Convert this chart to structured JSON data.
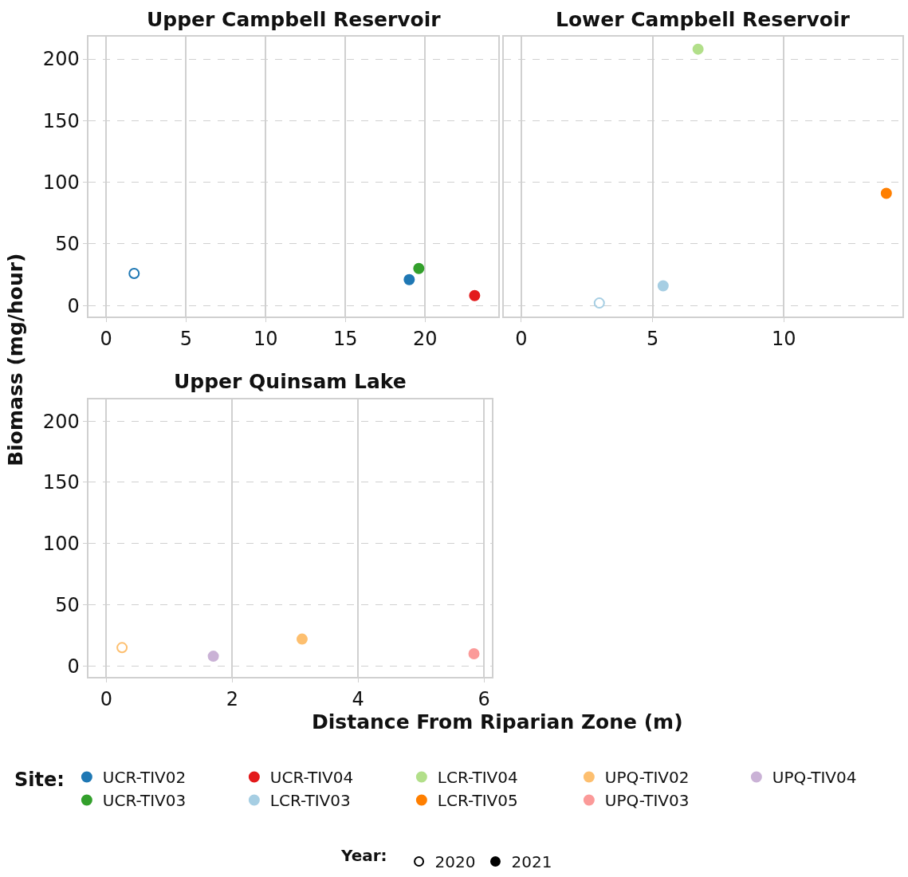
{
  "chart_data": [
    {
      "type": "scatter",
      "title": "Upper Campbell Reservoir",
      "ylabel": "Biomass (mg/hour)",
      "xlim": [
        -1.1,
        24.6
      ],
      "xticks": [
        0,
        5,
        10,
        15,
        20
      ],
      "ylim": [
        -9,
        218
      ],
      "yticks": [
        0,
        50,
        100,
        150,
        200
      ],
      "grid": true,
      "legend": "bottom",
      "legend_title": "Site:",
      "series": [
        {
          "color": "#1f78b4",
          "marker": "circle-open",
          "x": [
            1.75
          ],
          "values": [
            26
          ]
        },
        {
          "name": "UCR-TIV02",
          "color": "#1f78b4",
          "marker": "circle",
          "x": [
            19.0
          ],
          "values": [
            21
          ]
        },
        {
          "name": "UCR-TIV03",
          "color": "#33a02c",
          "marker": "circle",
          "x": [
            19.6
          ],
          "values": [
            30
          ]
        },
        {
          "name": "UCR-TIV04",
          "color": "#e31a1c",
          "marker": "circle",
          "x": [
            23.1
          ],
          "values": [
            8
          ]
        }
      ]
    },
    {
      "type": "scatter",
      "title": "Lower Campbell Reservoir",
      "legend": "bottom",
      "xlim": [
        -0.66,
        14.5
      ],
      "xticks": [
        0,
        5,
        10
      ],
      "ylim": [
        -9,
        218
      ],
      "grid": true,
      "tick_labels": "x",
      "series": [
        {
          "color": "#a6cee3",
          "marker": "circle-open",
          "x": [
            2.97
          ],
          "values": [
            2
          ]
        },
        {
          "name": "LCR-TIV03",
          "color": "#a6cee3",
          "marker": "circle",
          "x": [
            5.4
          ],
          "values": [
            16
          ]
        },
        {
          "name": "LCR-TIV04",
          "color": "#b2df8a",
          "marker": "circle",
          "x": [
            6.73
          ],
          "values": [
            208
          ]
        },
        {
          "name": "LCR-TIV05",
          "color": "#ff7f00",
          "marker": "circle",
          "x": [
            13.9
          ],
          "values": [
            91
          ]
        }
      ]
    },
    {
      "type": "scatter",
      "title": "Upper Quinsam Lake",
      "legend": "bottom",
      "annotations": [
        "Year:"
      ],
      "xlabel": "Distance From Riparian Zone (m)",
      "xlim": [
        -0.28,
        6.13
      ],
      "xticks": [
        0,
        2,
        4,
        6
      ],
      "ylim": [
        -9,
        218
      ],
      "yticks": [
        0,
        50,
        100,
        150,
        200
      ],
      "grid": true,
      "series": [
        {
          "color": "#fdbf6f",
          "marker": "circle-open",
          "x": [
            0.25
          ],
          "values": [
            15
          ]
        },
        {
          "name": "UPQ-TIV02",
          "color": "#fdbf6f",
          "marker": "circle",
          "x": [
            3.11
          ],
          "values": [
            22
          ]
        },
        {
          "name": "UPQ-TIV03",
          "color": "#fb9a99",
          "marker": "circle",
          "x": [
            5.84
          ],
          "values": [
            10
          ]
        },
        {
          "name": "UPQ-TIV04",
          "color": "#cab2d6",
          "marker": "circle",
          "x": [
            1.7
          ],
          "values": [
            8
          ]
        },
        {
          "name": "2020",
          "color": "#000000",
          "marker": "circle-open",
          "x": [
            null
          ],
          "values": [
            null
          ]
        },
        {
          "name": "2021",
          "color": "#000000",
          "marker": "circle",
          "x": [
            null
          ],
          "values": [
            null
          ]
        }
      ]
    }
  ]
}
